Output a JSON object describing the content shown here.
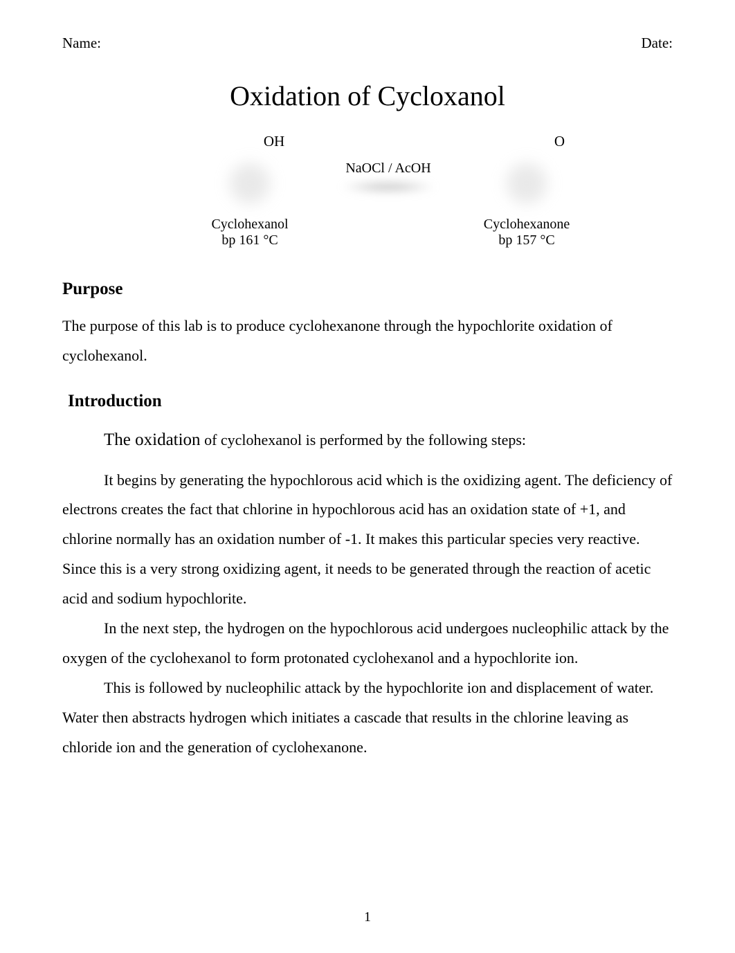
{
  "header": {
    "name_label": "Name:",
    "date_label": "Date:"
  },
  "title": "Oxidation of Cycloxanol",
  "diagram": {
    "left": {
      "top_label": "OH",
      "name": "Cyclohexanol",
      "bp": "bp 161 °C"
    },
    "middle": {
      "reagent": "NaOCl / AcOH"
    },
    "right": {
      "top_label": "O",
      "name": "Cyclohexanone",
      "bp": "bp 157 °C"
    }
  },
  "purpose": {
    "heading": "Purpose",
    "text": "The purpose of this lab is to produce cyclohexanone through the hypochlorite oxidation of cyclohexanol."
  },
  "introduction": {
    "heading": "Introduction",
    "lead": "The oxidation",
    "lead_rest": " of cyclohexanol is performed by the following steps:",
    "para1": "It begins by generating the hypochlorous acid which is the oxidizing agent. The deficiency of electrons creates the fact that chlorine in hypochlorous acid has an oxidation state of +1, and chlorine normally has an oxidation number of -1. It makes this particular species very reactive. Since this is a very strong oxidizing agent, it needs to be generated through the reaction of acetic acid and sodium hypochlorite.",
    "para2": "In the next step, the hydrogen on the hypochlorous acid undergoes nucleophilic attack by the oxygen of the cyclohexanol to form protonated cyclohexanol and a hypochlorite ion.",
    "para3": "This is followed by nucleophilic attack by the hypochlorite ion and displacement of water. Water then abstracts hydrogen which initiates a cascade that results in the chlorine leaving as chloride ion and the generation of cyclohexanone."
  },
  "page_number": "1"
}
